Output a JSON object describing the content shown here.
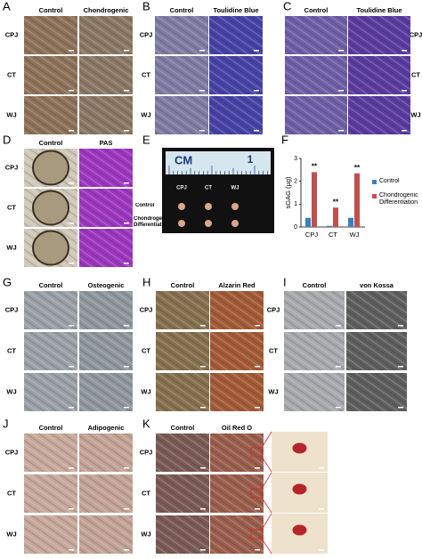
{
  "panels": [
    {
      "letter": "A",
      "columns": [
        "Control",
        "Chondrogenic"
      ],
      "rows": [
        "CPJ",
        "CT",
        "WJ"
      ]
    },
    {
      "letter": "B",
      "columns": [
        "Control",
        "Toulidine Blue"
      ],
      "rows": [
        "CPJ",
        "CT",
        "WJ"
      ]
    },
    {
      "letter": "C",
      "columns": [
        "Control",
        "Toulidine Blue"
      ],
      "rows": [
        "CPJ",
        "CT",
        "WJ"
      ]
    },
    {
      "letter": "D",
      "columns": [
        "Control",
        "PAS"
      ],
      "rows": [
        "CPJ",
        "CT",
        "WJ"
      ]
    },
    {
      "letter": "G",
      "columns": [
        "Control",
        "Osteogenic"
      ],
      "rows": [
        "CPJ",
        "CT",
        "WJ"
      ]
    },
    {
      "letter": "H",
      "columns": [
        "Control",
        "Alzarin Red"
      ],
      "rows": [
        "CPJ",
        "CT",
        "WJ"
      ]
    },
    {
      "letter": "I",
      "columns": [
        "Control",
        "von Kossa"
      ],
      "rows": [
        "CPJ",
        "CT",
        "WJ"
      ]
    },
    {
      "letter": "J",
      "columns": [
        "Control",
        "Adipogenic"
      ],
      "rows": [
        "CPJ",
        "CT",
        "WJ"
      ]
    },
    {
      "letter": "K",
      "columns": [
        "Control",
        "Oil Red O"
      ],
      "rows": [
        "CPJ",
        "CT",
        "WJ"
      ]
    }
  ],
  "panel_e": {
    "letter": "E",
    "ruler": [
      "CM",
      "1"
    ],
    "rows": [
      "Control",
      "Chondrogenic Differentiation"
    ],
    "columns": [
      "CPJ",
      "CT",
      "WJ"
    ]
  },
  "chart_data": {
    "type": "bar",
    "panel_label": "F",
    "y_label": "sGAG (µg)",
    "categories": [
      "CPJ",
      "CT",
      "WJ"
    ],
    "series": [
      {
        "name": "Control",
        "color": "#3a7fc0",
        "values": [
          0.4,
          0.05,
          0.4
        ]
      },
      {
        "name": "Chondrogenic Differentiation",
        "color": "#c0504d",
        "values": [
          2.4,
          0.85,
          2.35
        ]
      }
    ],
    "ylim": [
      0,
      3
    ],
    "yticks": [
      0,
      1,
      2,
      3
    ],
    "significance": [
      "**",
      "**",
      "**"
    ]
  }
}
